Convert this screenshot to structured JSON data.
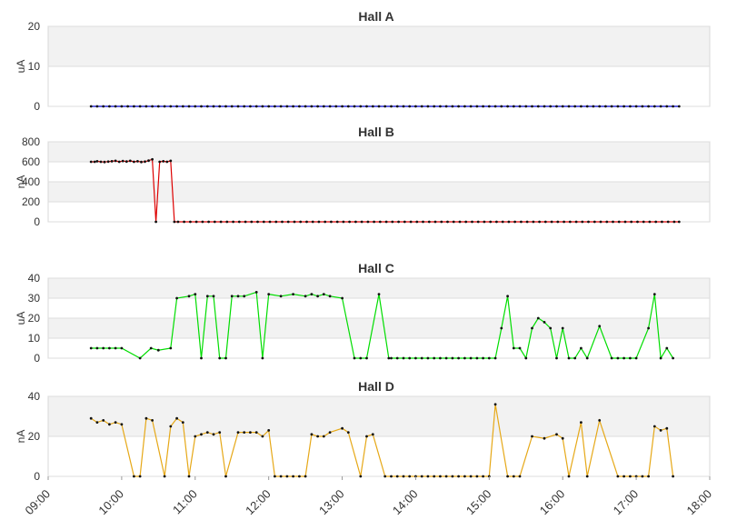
{
  "chart_data": {
    "type": "line",
    "x_axis": {
      "start": "09:00",
      "end": "18:00",
      "tick_labels": [
        "09:00",
        "10:00",
        "11:00",
        "12:00",
        "13:00",
        "14:00",
        "15:00",
        "16:00",
        "17:00",
        "18:00"
      ]
    },
    "colors": {
      "Hall A": "#0000cc",
      "Hall B": "#dd0000",
      "Hall C": "#00dd00",
      "Hall D": "#e6a817"
    },
    "panels": [
      {
        "title": "Hall A",
        "ylabel": "uA",
        "ylim": [
          0,
          20
        ],
        "yticks": [
          0,
          10,
          20
        ],
        "series": [
          {
            "name": "Hall A",
            "x": [
              "09:35",
              "17:35"
            ],
            "y": [
              0,
              0
            ],
            "sampling": "~5 min, constant 0"
          }
        ]
      },
      {
        "title": "Hall B",
        "ylabel": "nA",
        "ylim": [
          0,
          800
        ],
        "yticks": [
          0,
          200,
          400,
          600,
          800
        ],
        "series": [
          {
            "name": "Hall B",
            "x": [
              "09:35",
              "09:38",
              "09:40",
              "09:43",
              "09:46",
              "09:49",
              "09:52",
              "09:55",
              "09:58",
              "10:01",
              "10:04",
              "10:07",
              "10:10",
              "10:13",
              "10:16",
              "10:19",
              "10:22",
              "10:25",
              "10:28",
              "10:31",
              "10:34",
              "10:37",
              "10:40",
              "10:43",
              "10:46",
              "17:35"
            ],
            "y": [
              600,
              600,
              605,
              600,
              598,
              602,
              605,
              610,
              600,
              608,
              603,
              610,
              600,
              605,
              598,
              602,
              612,
              625,
              0,
              600,
              605,
              600,
              610,
              0,
              0,
              0
            ]
          }
        ]
      },
      {
        "title": "Hall C",
        "ylabel": "uA",
        "ylim": [
          0,
          40
        ],
        "yticks": [
          0,
          10,
          20,
          30,
          40
        ],
        "series": [
          {
            "name": "Hall C",
            "x": [
              "09:35",
              "10:00",
              "10:15",
              "10:24",
              "10:30",
              "10:40",
              "10:45",
              "10:55",
              "11:00",
              "11:05",
              "11:10",
              "11:15",
              "11:20",
              "11:25",
              "11:30",
              "11:35",
              "11:40",
              "11:50",
              "11:55",
              "12:00",
              "12:10",
              "12:20",
              "12:30",
              "12:35",
              "12:40",
              "12:45",
              "12:50",
              "13:00",
              "13:10",
              "13:20",
              "13:30",
              "13:38",
              "13:40",
              "14:00",
              "15:05",
              "15:10",
              "15:15",
              "15:20",
              "15:25",
              "15:30",
              "15:35",
              "15:40",
              "15:45",
              "15:50",
              "15:55",
              "16:00",
              "16:05",
              "16:10",
              "16:15",
              "16:20",
              "16:30",
              "16:40",
              "16:45",
              "17:00",
              "17:10",
              "17:15",
              "17:20",
              "17:25",
              "17:30"
            ],
            "y": [
              5,
              5,
              0,
              5,
              4,
              5,
              30,
              31,
              32,
              0,
              31,
              31,
              0,
              0,
              31,
              31,
              31,
              33,
              0,
              32,
              31,
              32,
              31,
              32,
              31,
              32,
              31,
              30,
              0,
              0,
              32,
              0,
              0,
              0,
              0,
              15,
              31,
              5,
              5,
              0,
              15,
              20,
              18,
              15,
              0,
              15,
              0,
              0,
              5,
              0,
              16,
              0,
              0,
              0,
              15,
              32,
              0,
              5,
              0
            ]
          }
        ]
      },
      {
        "title": "Hall D",
        "ylabel": "nA",
        "ylim": [
          0,
          40
        ],
        "yticks": [
          0,
          20,
          40
        ],
        "series": [
          {
            "name": "Hall D",
            "x": [
              "09:35",
              "09:40",
              "09:45",
              "09:50",
              "09:55",
              "10:00",
              "10:10",
              "10:15",
              "10:20",
              "10:25",
              "10:35",
              "10:40",
              "10:45",
              "10:50",
              "10:55",
              "11:00",
              "11:05",
              "11:10",
              "11:15",
              "11:20",
              "11:25",
              "11:35",
              "11:50",
              "11:55",
              "12:00",
              "12:05",
              "12:10",
              "12:20",
              "12:30",
              "12:35",
              "12:40",
              "12:45",
              "12:50",
              "13:00",
              "13:05",
              "13:15",
              "13:20",
              "13:25",
              "13:35",
              "14:00",
              "15:00",
              "15:05",
              "15:15",
              "15:25",
              "15:35",
              "15:45",
              "15:55",
              "16:00",
              "16:05",
              "16:15",
              "16:20",
              "16:30",
              "16:45",
              "17:00",
              "17:10",
              "17:15",
              "17:20",
              "17:25",
              "17:30"
            ],
            "y": [
              29,
              27,
              28,
              26,
              27,
              26,
              0,
              0,
              29,
              28,
              0,
              25,
              29,
              27,
              0,
              20,
              21,
              22,
              21,
              22,
              0,
              22,
              22,
              20,
              23,
              0,
              0,
              0,
              0,
              21,
              20,
              20,
              22,
              24,
              22,
              0,
              20,
              21,
              0,
              0,
              0,
              36,
              0,
              0,
              20,
              19,
              21,
              19,
              0,
              27,
              0,
              28,
              0,
              0,
              0,
              25,
              23,
              24,
              0
            ]
          }
        ]
      }
    ]
  }
}
